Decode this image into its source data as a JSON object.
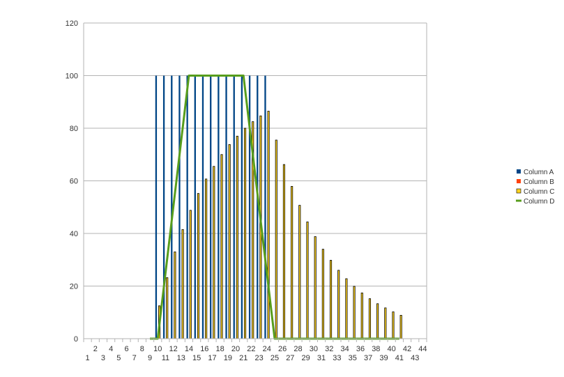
{
  "colors": {
    "column_a": "#004586",
    "column_b": "#ff420e",
    "column_c": "#ffd320",
    "column_d": "#579d1c",
    "gridline": "#b3b3b3",
    "bar_outline": "#000000"
  },
  "chart_data": {
    "type": "bar",
    "title": "",
    "xlabel": "",
    "ylabel": "",
    "ylim": [
      0,
      120
    ],
    "yticks": [
      0,
      20,
      40,
      60,
      80,
      100,
      120
    ],
    "x": [
      1,
      2,
      3,
      4,
      5,
      6,
      7,
      8,
      9,
      10,
      11,
      12,
      13,
      14,
      15,
      16,
      17,
      18,
      19,
      20,
      21,
      22,
      23,
      24,
      25,
      26,
      27,
      28,
      29,
      30,
      31,
      32,
      33,
      34,
      35,
      36,
      37,
      38,
      39,
      40,
      41,
      42,
      43,
      44
    ],
    "grid": "horizontal",
    "legend_position": "right",
    "series": [
      {
        "name": "Column A",
        "kind": "bar",
        "values": [
          null,
          null,
          null,
          null,
          null,
          null,
          null,
          null,
          null,
          100,
          100,
          100,
          100,
          100,
          100,
          100,
          100,
          100,
          100,
          100,
          100,
          100,
          100,
          100,
          null,
          null,
          null,
          null,
          null,
          null,
          null,
          null,
          null,
          null,
          null,
          null,
          null,
          null,
          null,
          null,
          null,
          null,
          null,
          null
        ]
      },
      {
        "name": "Column B",
        "kind": "bar",
        "values": [
          null,
          null,
          null,
          null,
          null,
          null,
          null,
          null,
          null,
          null,
          null,
          null,
          null,
          null,
          null,
          null,
          null,
          null,
          null,
          null,
          null,
          null,
          null,
          null,
          null,
          null,
          null,
          null,
          null,
          null,
          null,
          null,
          null,
          null,
          null,
          null,
          null,
          null,
          null,
          null,
          null,
          null,
          null,
          null
        ]
      },
      {
        "name": "Column C",
        "kind": "bar",
        "values": [
          null,
          null,
          null,
          null,
          null,
          null,
          null,
          null,
          null,
          12.5,
          23.2,
          33,
          41.5,
          48.8,
          55.2,
          60.7,
          65.5,
          70,
          73.8,
          77,
          80,
          82.5,
          84.7,
          86.5,
          75.5,
          66.2,
          57.9,
          50.7,
          44.4,
          38.8,
          34,
          29.8,
          26,
          22.8,
          19.9,
          17.4,
          15.2,
          13.3,
          11.7,
          10.2,
          8.9,
          null,
          null,
          null
        ]
      },
      {
        "name": "Column D",
        "kind": "line",
        "values": [
          null,
          null,
          null,
          null,
          null,
          null,
          null,
          null,
          0,
          0,
          25,
          50,
          75,
          100,
          100,
          100,
          100,
          100,
          100,
          100,
          100,
          75,
          50,
          25,
          0,
          0,
          0,
          0,
          0,
          0,
          0,
          0,
          0,
          0,
          0,
          0,
          0,
          0,
          0,
          0,
          0,
          null,
          null,
          null
        ]
      }
    ]
  }
}
